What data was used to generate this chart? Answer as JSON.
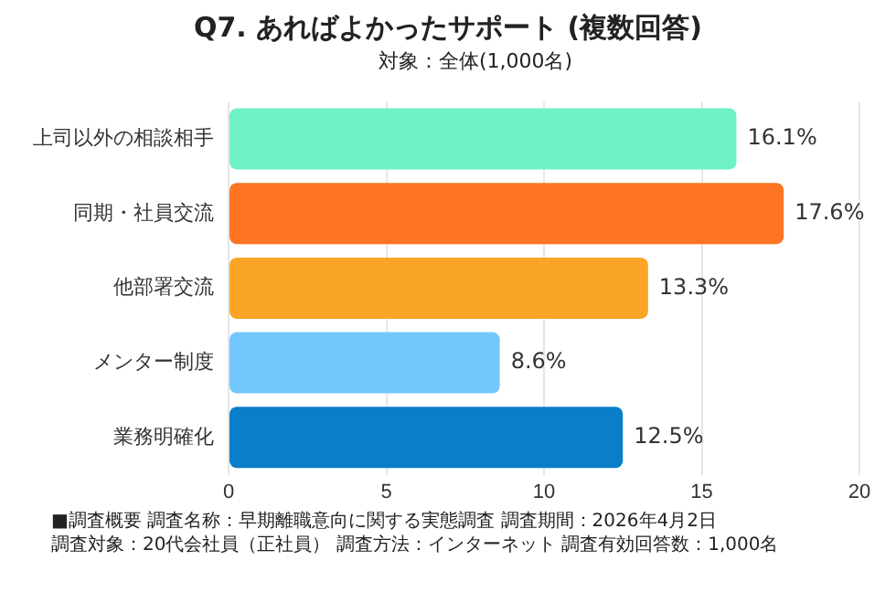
{
  "chart_data": {
    "type": "bar",
    "orientation": "horizontal",
    "title": "Q7. あればよかったサポート (複数回答)",
    "subtitle": "対象：全体(1,000名)",
    "categories": [
      "上司以外の相談相手",
      "同期・社員交流",
      "他部署交流",
      "メンター制度",
      "業務明確化"
    ],
    "values": [
      16.1,
      17.6,
      13.3,
      8.6,
      12.5
    ],
    "colors": [
      "#6ef2c6",
      "#fd7522",
      "#fba526",
      "#72c8fc",
      "#0a7ec8"
    ],
    "value_labels": [
      "16.1%",
      "17.6%",
      "13.3%",
      "8.6%",
      "12.5%"
    ],
    "xlim": [
      0,
      20
    ],
    "xticks": [
      0,
      5,
      10,
      15,
      20
    ],
    "grid": "x",
    "annotations": [
      "■調査概要 調査名称：早期離職意向に関する実態調査 調査期間：2026年4月2日",
      "調査対象：20代会社員（正社員） 調査方法：インターネット 調査有効回答数：1,000名"
    ]
  }
}
